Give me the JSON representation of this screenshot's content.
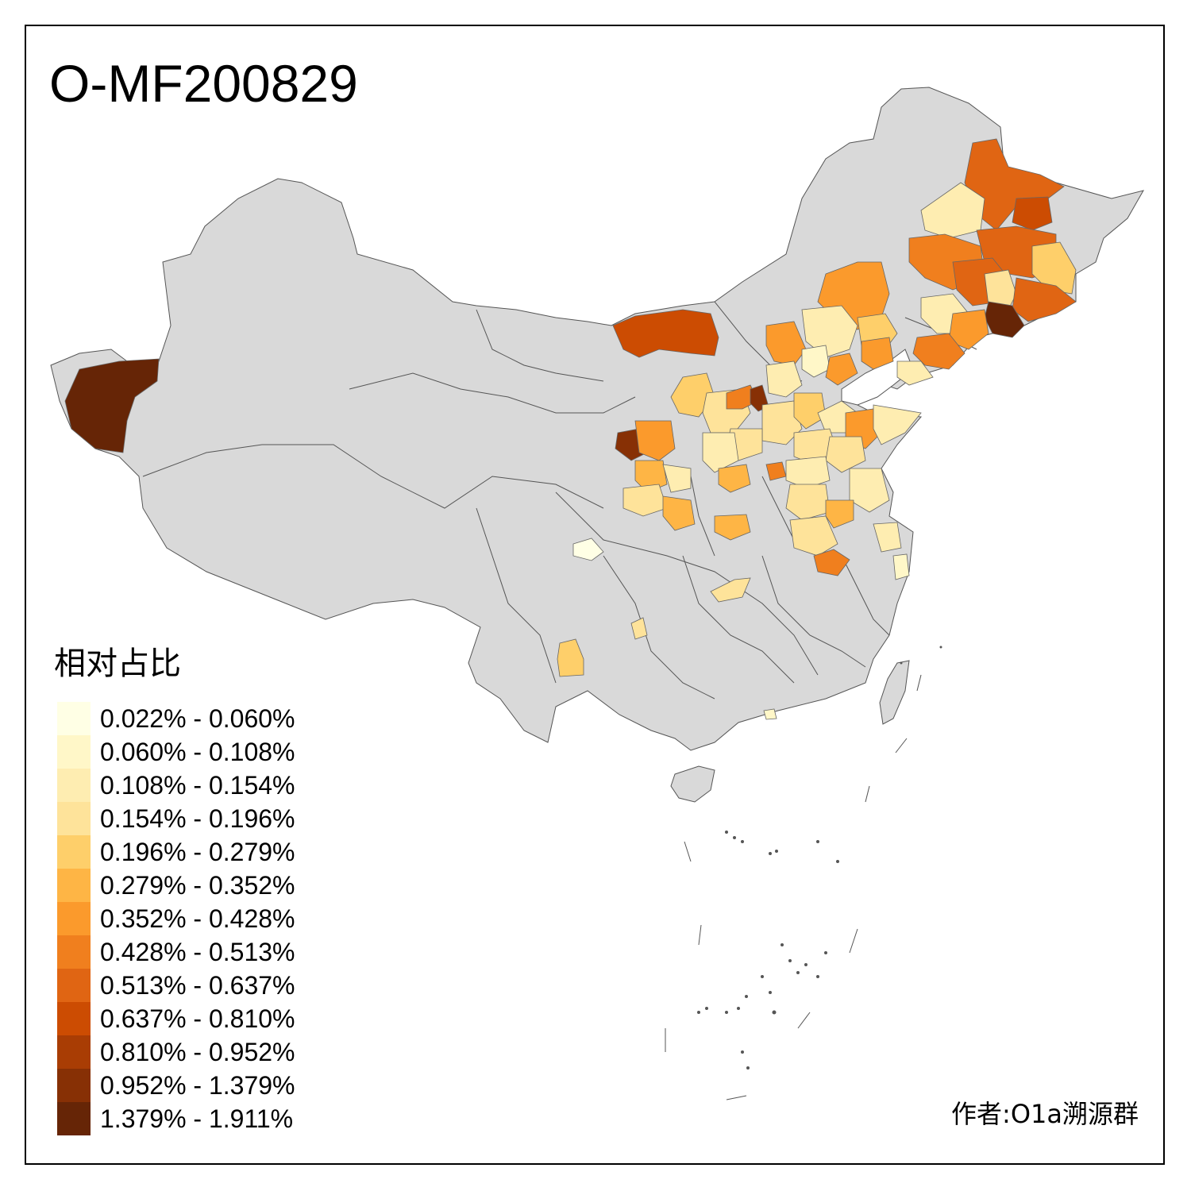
{
  "title": "O-MF200829",
  "author": "作者:O1a溯源群",
  "legend": {
    "title": "相对占比",
    "items": [
      {
        "label": "0.022% - 0.060%",
        "color": "#FFFFE5"
      },
      {
        "label": "0.060% - 0.108%",
        "color": "#FFF7C8"
      },
      {
        "label": "0.108% - 0.154%",
        "color": "#FEEDB1"
      },
      {
        "label": "0.154% - 0.196%",
        "color": "#FEE39A"
      },
      {
        "label": "0.196% - 0.279%",
        "color": "#FECF6A"
      },
      {
        "label": "0.279% - 0.352%",
        "color": "#FEB545"
      },
      {
        "label": "0.352% - 0.428%",
        "color": "#FB9A2C"
      },
      {
        "label": "0.428% - 0.513%",
        "color": "#F07F1E"
      },
      {
        "label": "0.513% - 0.637%",
        "color": "#E06513"
      },
      {
        "label": "0.637% - 0.810%",
        "color": "#CC4C02"
      },
      {
        "label": "0.810% - 0.952%",
        "color": "#A93D04"
      },
      {
        "label": "0.952% - 1.379%",
        "color": "#873005"
      },
      {
        "label": "1.379% - 1.911%",
        "color": "#662506"
      }
    ]
  },
  "map": {
    "base_color": "#D9D9D9",
    "border_color": "#555555"
  }
}
